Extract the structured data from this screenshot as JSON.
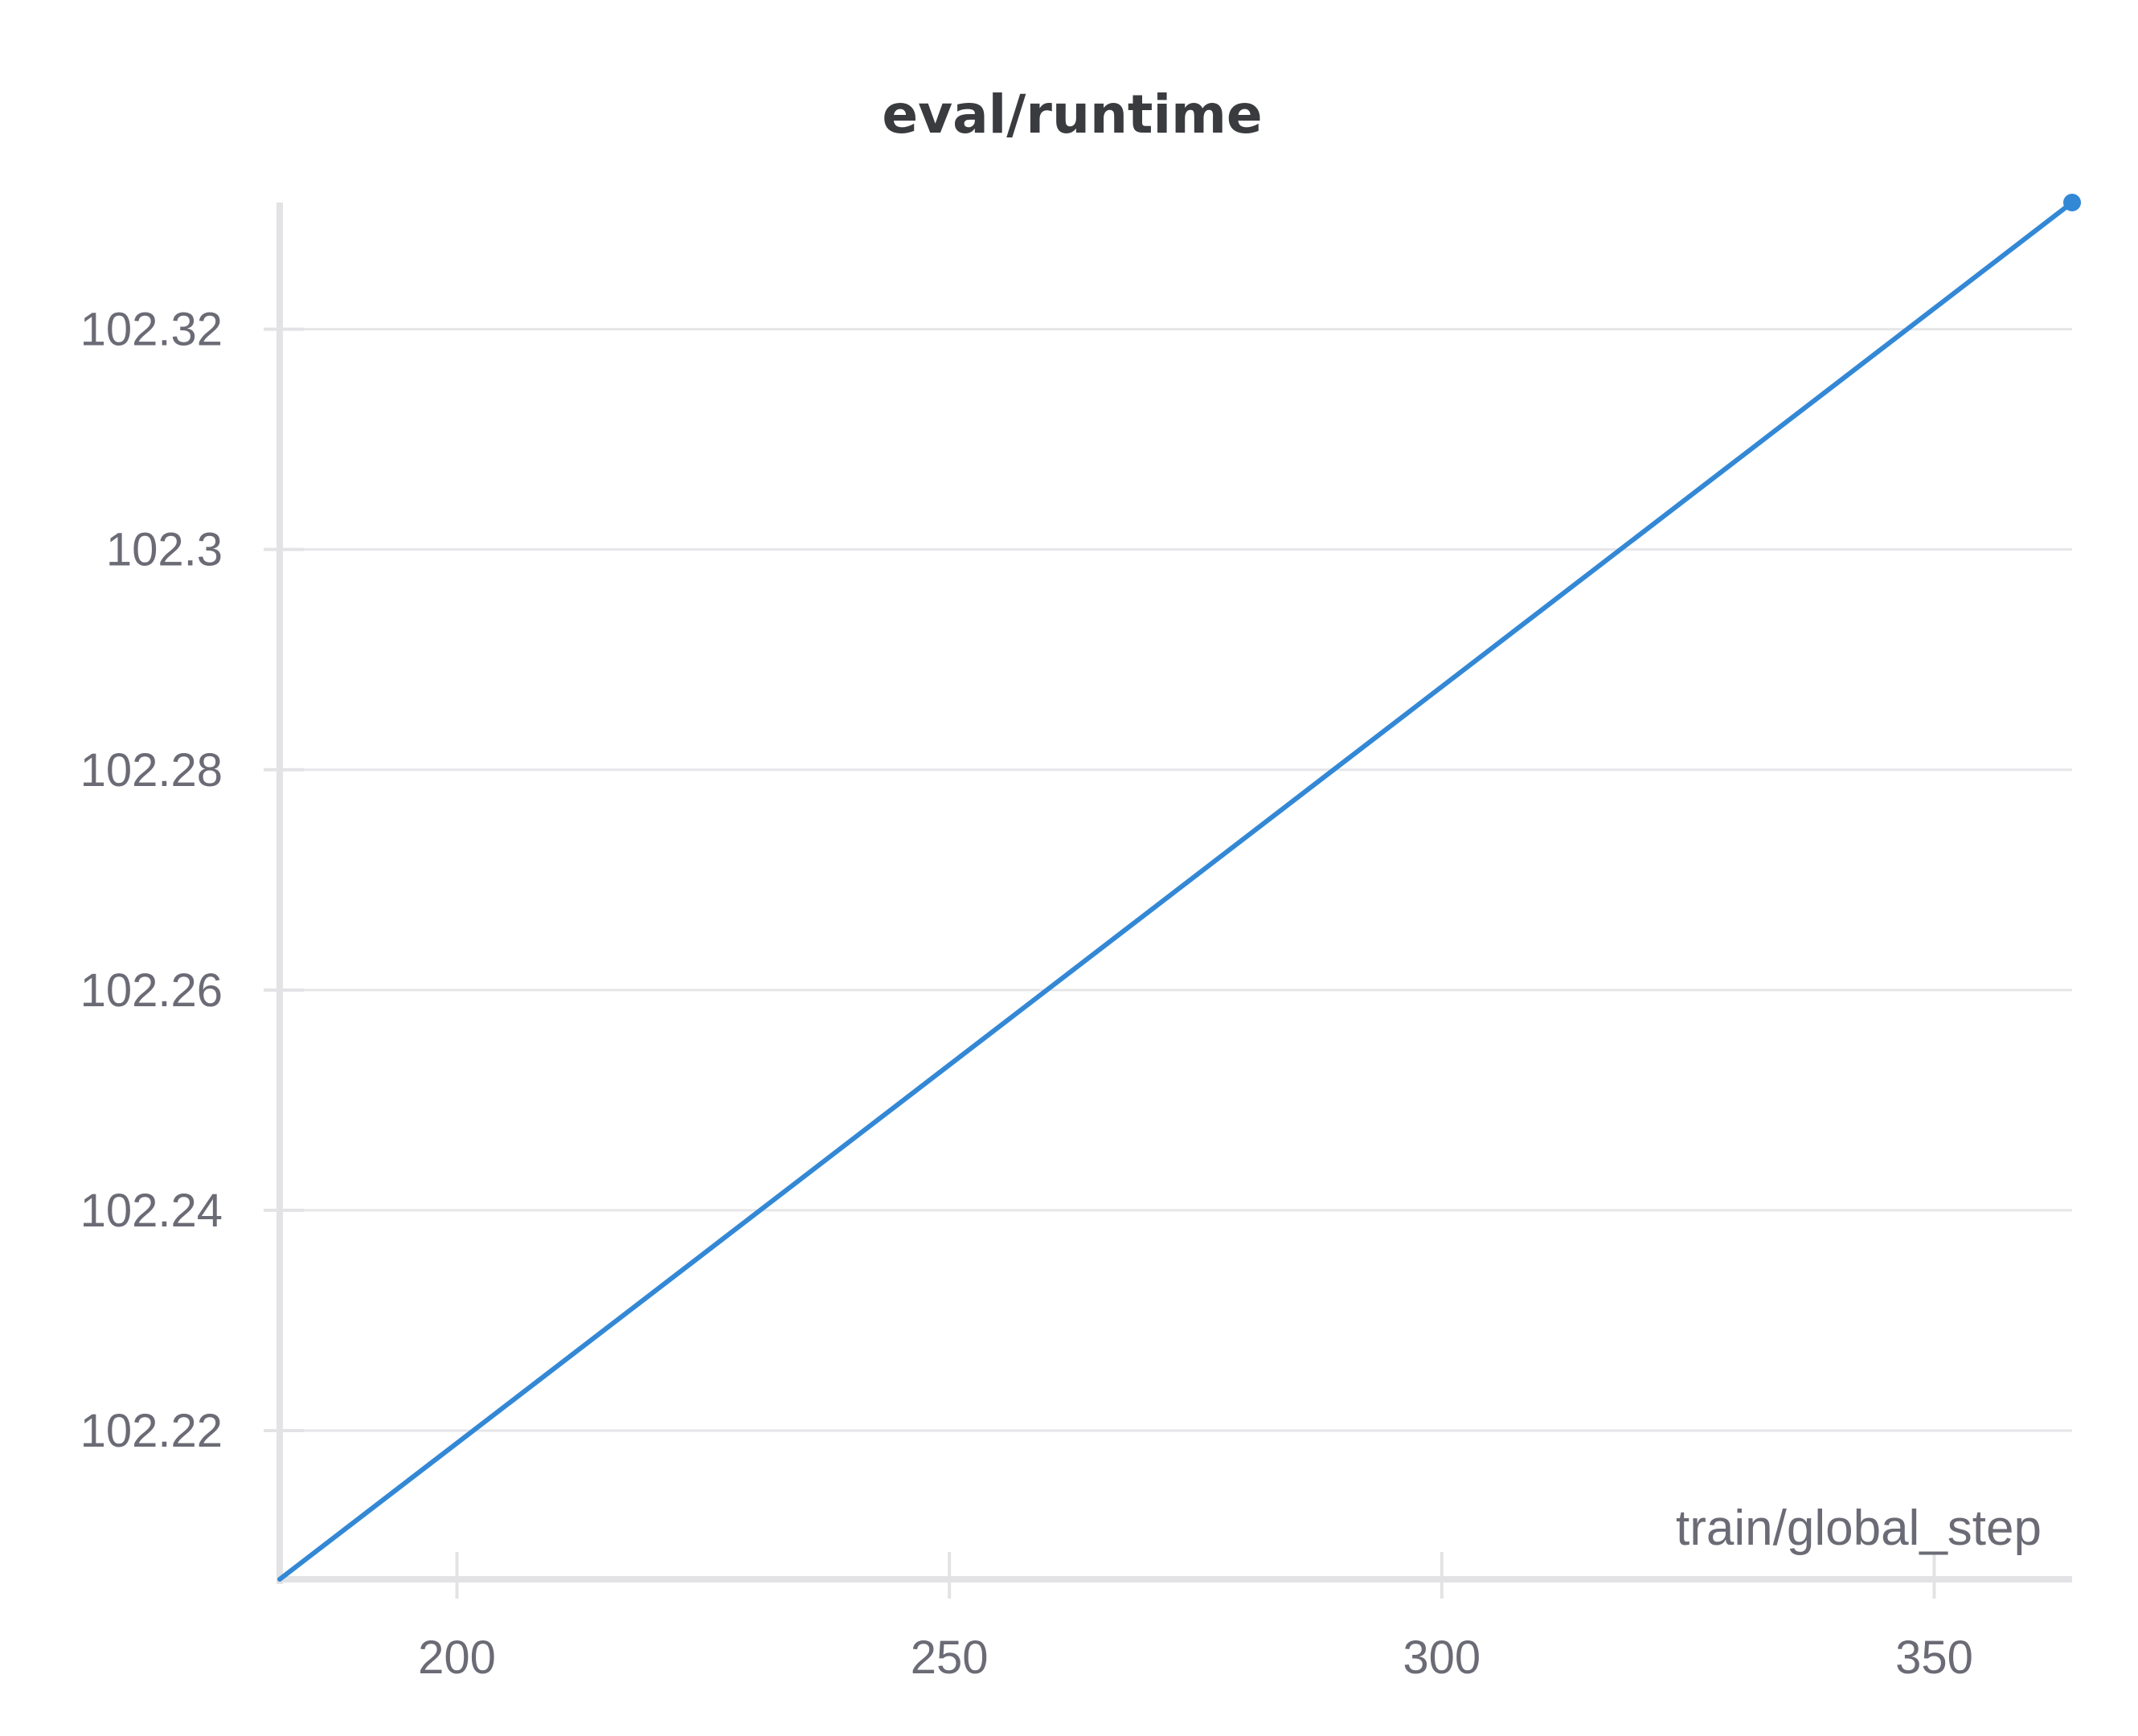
{
  "chart_data": {
    "type": "line",
    "title": "eval/runtime",
    "xlabel": "train/global_step",
    "ylabel": "",
    "xlim": [
      182,
      364
    ],
    "ylim": [
      102.2065,
      102.3315
    ],
    "x_ticks": [
      200,
      250,
      300,
      350
    ],
    "y_ticks": [
      102.22,
      102.24,
      102.26,
      102.28,
      102.3,
      102.32
    ],
    "x_tick_labels": [
      "200",
      "250",
      "300",
      "350"
    ],
    "y_tick_labels": [
      "102.22",
      "102.24",
      "102.26",
      "102.28",
      "102.3",
      "102.32"
    ],
    "grid": "horizontal",
    "series": [
      {
        "color": "#3388d6",
        "x": [
          182,
          364
        ],
        "y": [
          102.2065,
          102.3315
        ]
      }
    ]
  }
}
